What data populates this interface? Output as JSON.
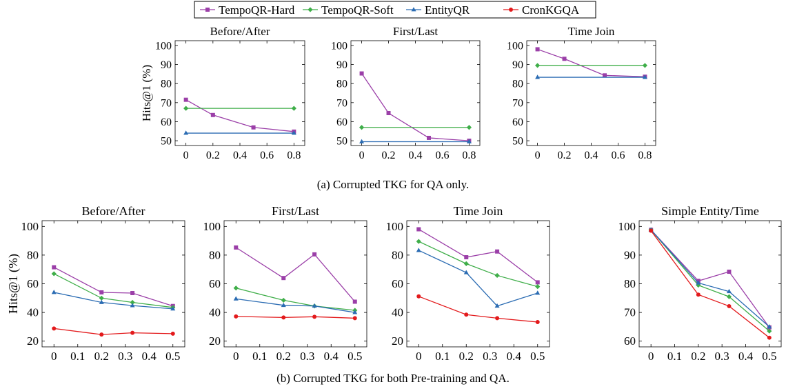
{
  "legend": {
    "entries": [
      {
        "name": "TempoQR-Hard",
        "color": "#9b3fa8",
        "marker": "square"
      },
      {
        "name": "TempoQR-Soft",
        "color": "#3fae49",
        "marker": "diamond"
      },
      {
        "name": "EntityQR",
        "color": "#2b6cb3",
        "marker": "triangle"
      },
      {
        "name": "CronKGQA",
        "color": "#e31a1c",
        "marker": "circle"
      }
    ]
  },
  "captions": {
    "a": "(a) Corrupted TKG for QA only.",
    "b": "(b) Corrupted TKG for both Pre-training and QA."
  },
  "chart_data": [
    {
      "type": "line",
      "panel": "a",
      "title": "Before/After",
      "xlabel": "",
      "ylabel": "Hits@1 (%)",
      "xlim": [
        0,
        0.8
      ],
      "ylim": [
        50,
        100
      ],
      "xticks": [
        0,
        0.2,
        0.4,
        0.6,
        0.8
      ],
      "xtick_labels": [
        "0",
        "0.2",
        "0.4",
        "0.6",
        "0.8"
      ],
      "yticks": [
        50,
        60,
        70,
        80,
        90,
        100
      ],
      "series": [
        {
          "name": "TempoQR-Hard",
          "x": [
            0,
            0.2,
            0.5,
            0.8
          ],
          "y": [
            71.5,
            63.5,
            57,
            54.8
          ]
        },
        {
          "name": "TempoQR-Soft",
          "x": [
            0,
            0.8
          ],
          "y": [
            67,
            67
          ]
        },
        {
          "name": "EntityQR",
          "x": [
            0,
            0.8
          ],
          "y": [
            54,
            54
          ]
        }
      ]
    },
    {
      "type": "line",
      "panel": "a",
      "title": "First/Last",
      "xlabel": "",
      "ylabel": "",
      "xlim": [
        0,
        0.8
      ],
      "ylim": [
        50,
        100
      ],
      "xticks": [
        0,
        0.2,
        0.4,
        0.6,
        0.8
      ],
      "xtick_labels": [
        "0",
        "0.2",
        "0.4",
        "0.6",
        "0.8"
      ],
      "yticks": [
        50,
        60,
        70,
        80,
        90,
        100
      ],
      "series": [
        {
          "name": "TempoQR-Hard",
          "x": [
            0,
            0.2,
            0.5,
            0.8
          ],
          "y": [
            85.3,
            64.5,
            51.5,
            50
          ]
        },
        {
          "name": "TempoQR-Soft",
          "x": [
            0,
            0.8
          ],
          "y": [
            57,
            57
          ]
        },
        {
          "name": "EntityQR",
          "x": [
            0,
            0.8
          ],
          "y": [
            49.5,
            49.5
          ]
        }
      ]
    },
    {
      "type": "line",
      "panel": "a",
      "title": "Time Join",
      "xlabel": "",
      "ylabel": "",
      "xlim": [
        0,
        0.8
      ],
      "ylim": [
        50,
        100
      ],
      "xticks": [
        0,
        0.2,
        0.4,
        0.6,
        0.8
      ],
      "xtick_labels": [
        "0",
        "0.2",
        "0.4",
        "0.6",
        "0.8"
      ],
      "yticks": [
        50,
        60,
        70,
        80,
        90,
        100
      ],
      "series": [
        {
          "name": "TempoQR-Hard",
          "x": [
            0,
            0.2,
            0.5,
            0.8
          ],
          "y": [
            98,
            93,
            84.3,
            83.6
          ]
        },
        {
          "name": "TempoQR-Soft",
          "x": [
            0,
            0.8
          ],
          "y": [
            89.5,
            89.5
          ]
        },
        {
          "name": "EntityQR",
          "x": [
            0,
            0.8
          ],
          "y": [
            83.3,
            83.3
          ]
        }
      ]
    },
    {
      "type": "line",
      "panel": "b",
      "title": "Before/After",
      "xlabel": "",
      "ylabel": "Hits@1 (%)",
      "xlim": [
        0,
        0.5
      ],
      "ylim": [
        20,
        100
      ],
      "xticks": [
        0,
        0.1,
        0.2,
        0.3,
        0.4,
        0.5
      ],
      "xtick_labels": [
        "0",
        "0.1",
        "0.2",
        "0.3",
        "0.4",
        "0.5"
      ],
      "yticks": [
        20,
        40,
        60,
        80,
        100
      ],
      "series": [
        {
          "name": "TempoQR-Hard",
          "x": [
            0,
            0.2,
            0.33,
            0.5
          ],
          "y": [
            71.5,
            54,
            53.5,
            44.5
          ]
        },
        {
          "name": "TempoQR-Soft",
          "x": [
            0,
            0.2,
            0.33,
            0.5
          ],
          "y": [
            67,
            50,
            47,
            43.5
          ]
        },
        {
          "name": "EntityQR",
          "x": [
            0,
            0.2,
            0.33,
            0.5
          ],
          "y": [
            54,
            47,
            44.8,
            42.5
          ]
        },
        {
          "name": "CronKGQA",
          "x": [
            0,
            0.2,
            0.33,
            0.5
          ],
          "y": [
            28.8,
            24.6,
            25.8,
            25.2
          ]
        }
      ]
    },
    {
      "type": "line",
      "panel": "b",
      "title": "First/Last",
      "xlabel": "",
      "ylabel": "",
      "xlim": [
        0,
        0.5
      ],
      "ylim": [
        20,
        100
      ],
      "xticks": [
        0,
        0.1,
        0.2,
        0.3,
        0.4,
        0.5
      ],
      "xtick_labels": [
        "0",
        "0.1",
        "0.2",
        "0.3",
        "0.4",
        "0.5"
      ],
      "yticks": [
        20,
        40,
        60,
        80,
        100
      ],
      "series": [
        {
          "name": "TempoQR-Hard",
          "x": [
            0,
            0.2,
            0.33,
            0.5
          ],
          "y": [
            85.3,
            64,
            80.5,
            47.5
          ]
        },
        {
          "name": "TempoQR-Soft",
          "x": [
            0,
            0.2,
            0.33,
            0.5
          ],
          "y": [
            57,
            48.5,
            44.5,
            41.5
          ]
        },
        {
          "name": "EntityQR",
          "x": [
            0,
            0.2,
            0.33,
            0.5
          ],
          "y": [
            49.5,
            45,
            44.5,
            40
          ]
        },
        {
          "name": "CronKGQA",
          "x": [
            0,
            0.2,
            0.33,
            0.5
          ],
          "y": [
            37.2,
            36.5,
            37,
            36
          ]
        }
      ]
    },
    {
      "type": "line",
      "panel": "b",
      "title": "Time Join",
      "xlabel": "",
      "ylabel": "",
      "xlim": [
        0,
        0.5
      ],
      "ylim": [
        20,
        100
      ],
      "xticks": [
        0,
        0.1,
        0.2,
        0.3,
        0.4,
        0.5
      ],
      "xtick_labels": [
        "0",
        "0.1",
        "0.2",
        "0.3",
        "0.4",
        "0.5"
      ],
      "yticks": [
        20,
        40,
        60,
        80,
        100
      ],
      "series": [
        {
          "name": "TempoQR-Hard",
          "x": [
            0,
            0.2,
            0.33,
            0.5
          ],
          "y": [
            98,
            78.5,
            82.5,
            61
          ]
        },
        {
          "name": "TempoQR-Soft",
          "x": [
            0,
            0.2,
            0.33,
            0.5
          ],
          "y": [
            89.5,
            74,
            65.8,
            58
          ]
        },
        {
          "name": "EntityQR",
          "x": [
            0,
            0.2,
            0.33,
            0.5
          ],
          "y": [
            83.3,
            67.8,
            44.5,
            53.5
          ]
        },
        {
          "name": "CronKGQA",
          "x": [
            0,
            0.2,
            0.33,
            0.5
          ],
          "y": [
            51.2,
            38.5,
            36,
            33.3
          ]
        }
      ]
    },
    {
      "type": "line",
      "panel": "b",
      "title": "Simple Entity/Time",
      "xlabel": "",
      "ylabel": "",
      "xlim": [
        0,
        0.5
      ],
      "ylim": [
        60,
        100
      ],
      "xticks": [
        0,
        0.1,
        0.2,
        0.3,
        0.4,
        0.5
      ],
      "xtick_labels": [
        "0",
        "0.1",
        "0.2",
        "0.3",
        "0.4",
        "0.5"
      ],
      "yticks": [
        60,
        70,
        80,
        90,
        100
      ],
      "series": [
        {
          "name": "TempoQR-Hard",
          "x": [
            0,
            0.2,
            0.33,
            0.5
          ],
          "y": [
            98.8,
            81,
            84.2,
            64.8
          ]
        },
        {
          "name": "TempoQR-Soft",
          "x": [
            0,
            0.2,
            0.33,
            0.5
          ],
          "y": [
            98.8,
            79.5,
            75.5,
            63.5
          ]
        },
        {
          "name": "EntityQR",
          "x": [
            0,
            0.2,
            0.33,
            0.5
          ],
          "y": [
            98.8,
            80.3,
            77.3,
            65
          ]
        },
        {
          "name": "CronKGQA",
          "x": [
            0,
            0.2,
            0.33,
            0.5
          ],
          "y": [
            98.5,
            76.2,
            72.2,
            61.2
          ]
        }
      ]
    }
  ]
}
